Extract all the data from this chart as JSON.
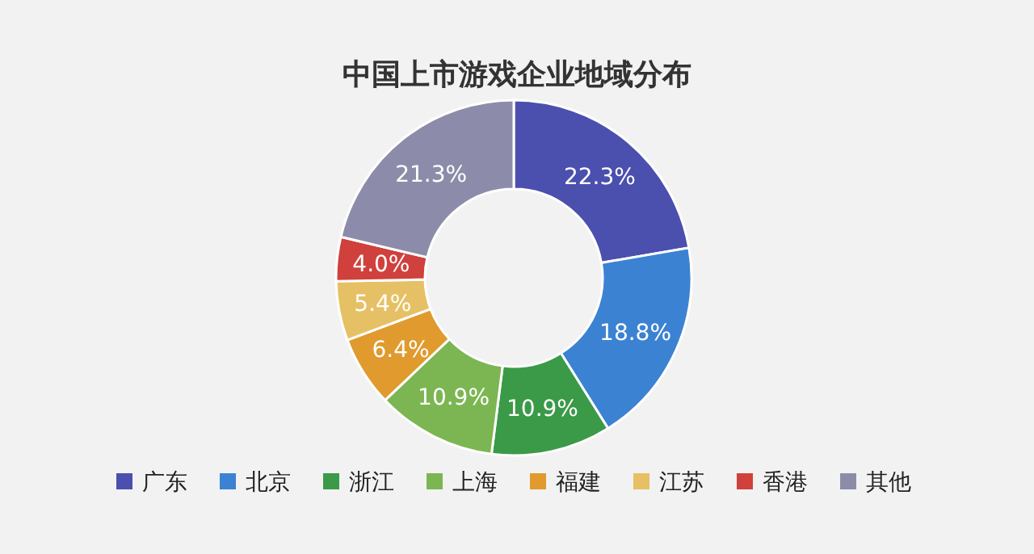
{
  "chart_data": {
    "type": "donut",
    "title": "中国上市游戏企业地域分布",
    "categories": [
      "广东",
      "北京",
      "浙江",
      "上海",
      "福建",
      "江苏",
      "香港",
      "其他"
    ],
    "values": [
      22.3,
      18.8,
      10.9,
      10.9,
      6.4,
      5.4,
      4.0,
      21.3
    ],
    "value_labels": [
      "22.3%",
      "18.8%",
      "10.9%",
      "10.9%",
      "6.4%",
      "5.4%",
      "4.0%",
      "21.3%"
    ],
    "colors": [
      "#4b4fae",
      "#3c82d2",
      "#3a9a48",
      "#7cb652",
      "#e09a2e",
      "#e6c064",
      "#d0403c",
      "#8c8caa"
    ],
    "legend": "bottom"
  }
}
